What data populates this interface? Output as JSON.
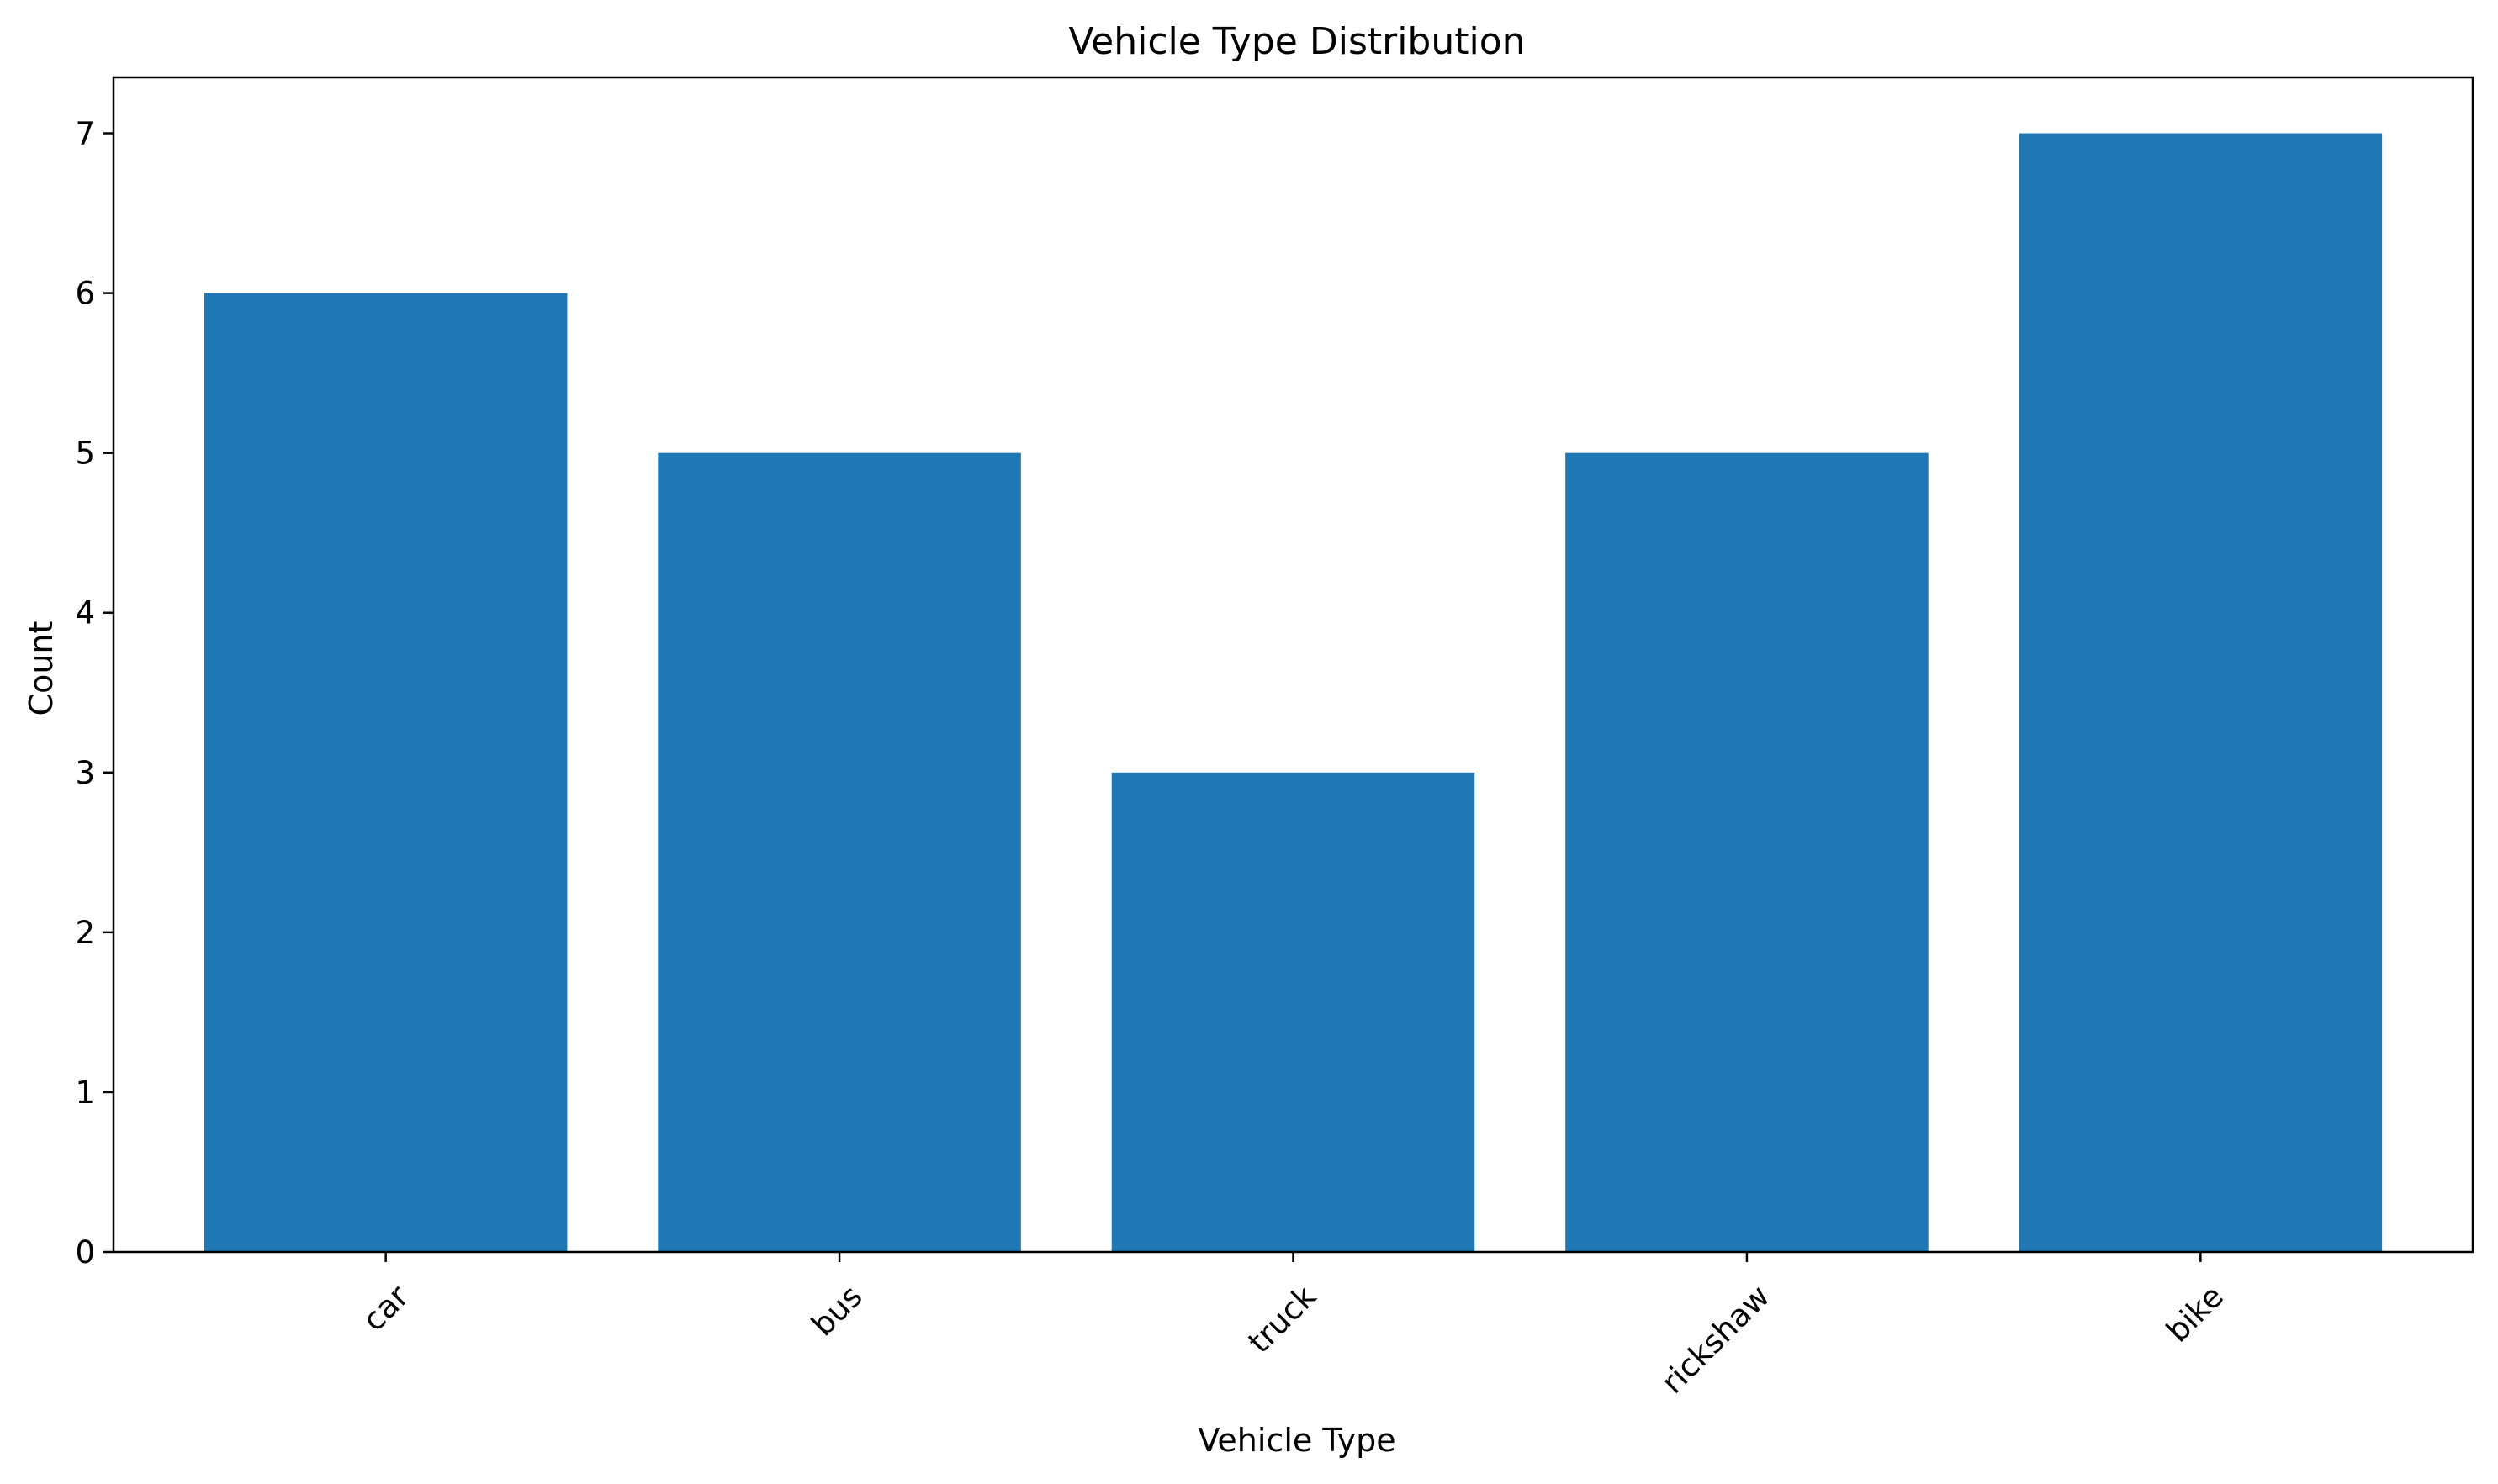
{
  "chart_data": {
    "type": "bar",
    "title": "Vehicle Type Distribution",
    "xlabel": "Vehicle Type",
    "ylabel": "Count",
    "categories": [
      "car",
      "bus",
      "truck",
      "rickshaw",
      "bike"
    ],
    "values": [
      6,
      5,
      3,
      5,
      7
    ],
    "ylim": [
      0,
      7.35
    ],
    "yticks": [
      0,
      1,
      2,
      3,
      4,
      5,
      6,
      7
    ],
    "bar_color": "#1f77b4",
    "grid": false,
    "legend": false,
    "x_tick_rotation": "45°"
  }
}
